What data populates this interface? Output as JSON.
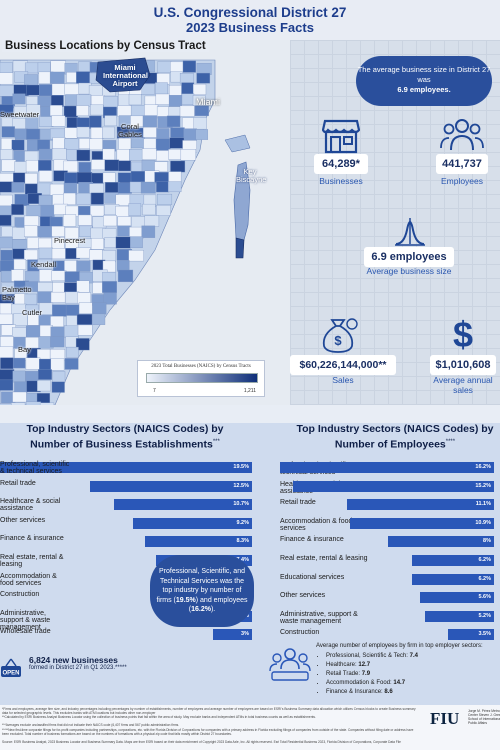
{
  "header": {
    "title_line1": "U.S. Congressional District 27",
    "title_line2": "2023 Business Facts"
  },
  "map": {
    "title": "Business Locations by Census Tract",
    "labels": {
      "airport": "Miami International Airport",
      "miami": "Miami",
      "coral_gables": "Coral Gables",
      "key_biscayne": "Key Biscayne",
      "sweetwater": "Sweetwater",
      "pinecrest": "Pinecrest",
      "kendall": "Kendall",
      "palmetto_bay": "Palmetto Bay",
      "cutler": "Cutler",
      "bay": "Bay"
    },
    "legend": {
      "title": "2023 Total Businesses (NAICS) by Census Tracts",
      "min": "7",
      "max": "1,211",
      "color_low": "#eef3fb",
      "color_high": "#0f2f7a"
    }
  },
  "stats": {
    "bubble_pre": "The average business size in District 27 was",
    "bubble_value": "6.9 employees.",
    "businesses": {
      "value": "64,289*",
      "label": "Businesses",
      "icon": "storefront-icon"
    },
    "employees": {
      "value": "441,737",
      "label": "Employees",
      "icon": "people-icon"
    },
    "avg_size": {
      "value": "6.9 employees",
      "label": "Average business size",
      "icon": "bell-curve-icon"
    },
    "sales": {
      "value": "$60,226,144,000**",
      "label": "Sales",
      "icon": "money-bag-icon"
    },
    "avg_sales": {
      "value": "$1,010,608",
      "label": "Average annual sales",
      "icon": "dollar-icon"
    }
  },
  "establishments": {
    "title_line1": "Top Industry Sectors (NAICS Codes) by",
    "title_line2": "Number of Business Establishments",
    "title_note": "***",
    "bars": [
      {
        "label": "Professional, scientific & technical services",
        "value": 19.5,
        "text": "19.5%"
      },
      {
        "label": "Retail trade",
        "value": 12.5,
        "text": "12.5%"
      },
      {
        "label": "Healthcare & social assistance",
        "value": 10.7,
        "text": "10.7%"
      },
      {
        "label": "Other services",
        "value": 9.2,
        "text": "9.2%"
      },
      {
        "label": "Finance & insurance",
        "value": 8.3,
        "text": "8.3%"
      },
      {
        "label": "Real estate, rental & leasing",
        "value": 7.4,
        "text": "7.4%"
      },
      {
        "label": "Accommodation & food services",
        "value": 6.6,
        "text": "6.6%"
      },
      {
        "label": "Construction",
        "value": 5.2,
        "text": "5.2%"
      },
      {
        "label": "Administrative, support & waste management",
        "value": 4.9,
        "text": "4.9%"
      },
      {
        "label": "Wholesale trade",
        "value": 3.0,
        "text": "3%"
      }
    ]
  },
  "employees_chart": {
    "title_line1": "Top Industry Sectors (NAICS Codes) by",
    "title_line2": "Number of Employees",
    "title_note": "****",
    "bars": [
      {
        "label": "Professional, scientific & technical services",
        "value": 16.2,
        "text": "16.2%"
      },
      {
        "label": "Healthcare & social assistance",
        "value": 15.2,
        "text": "15.2%"
      },
      {
        "label": "Retail trade",
        "value": 11.1,
        "text": "11.1%"
      },
      {
        "label": "Accommodation & food services",
        "value": 10.9,
        "text": "10.9%"
      },
      {
        "label": "Finance & insurance",
        "value": 8.0,
        "text": "8%"
      },
      {
        "label": "Real estate, rental & leasing",
        "value": 6.2,
        "text": "6.2%"
      },
      {
        "label": "Educational services",
        "value": 6.2,
        "text": "6.2%"
      },
      {
        "label": "Other services",
        "value": 5.6,
        "text": "5.6%"
      },
      {
        "label": "Administrative, support & waste management",
        "value": 5.2,
        "text": "5.2%"
      },
      {
        "label": "Construction",
        "value": 3.5,
        "text": "3.5%"
      }
    ]
  },
  "callout": {
    "text_a": "Professional, Scientific, and Technical Services was the top industry by number of firms (",
    "bold_a": "19.5%",
    "text_b": ") and employees (",
    "bold_b": "16.2%",
    "text_c": ")."
  },
  "new_businesses": {
    "headline": "6,824 new businesses",
    "sub": "formed in District 27 in Q1 2023.*****",
    "icon": "open-sign-icon"
  },
  "avg_employees": {
    "heading": "Average number of employees by firm in top employer sectors:",
    "items": [
      {
        "name": "Professional, Scientific & Tech:",
        "val": "7.4"
      },
      {
        "name": "Healthcare:",
        "val": "12.7"
      },
      {
        "name": "Retail Trade:",
        "val": "7.9"
      },
      {
        "name": "Accommodation & Food:",
        "val": "14.7"
      },
      {
        "name": "Finance & Insurance:",
        "val": "8.6"
      }
    ],
    "icon": "team-icon"
  },
  "footnotes": [
    "*Firms and employees, average firm size, and industry percentages including percentages by number of establishments, number of employees and average number of employees are based on ESRI's Business Summary data allocation which utilizes Census blocks to create Business summary data for selected geographic levels. This excludes banks with ATM locations but includes other non-employer",
    "**Calculated by ESRI Business Analyst Business Locator using the collection of business points that fall within the area of study. May exclude banks and independent ATMs in total business counts as well as establishments.",
    "***Averages exclude unclassified firms that did not indicate their NAICS code (6,407 firms and 567 public administration firms.",
    "*****New first-time corporate filings for for-profit companies including partnerships, corporations, etc. with the Florida Division of Corporations for companies with a primary address in Florida excluding filings of companies from outside of the state. Companies without filing date or address have been excluded. Total number of business formations are based on the numbers of formations with a physical zip code that falls mostly within District 27 boundaries.",
    "Source: ESRI Business Analyst, 2023 Business Locator and Business Summary Data. Maps are from ESRI based on their data enrichment of Copyright 2023 Data Axle, Inc. All rights reserved. Esri Total Residential Business 2023, Florida Division of Corporations, Corporate Data File"
  ],
  "logo": {
    "text": "FIU",
    "sub": "Jorge M. Pérez Metropolitan Center Steven J. Green School of International & Public Affairs"
  },
  "colors": {
    "accent": "#2a57b8",
    "navy": "#1d3d8c",
    "dark": "#0f1f47"
  }
}
